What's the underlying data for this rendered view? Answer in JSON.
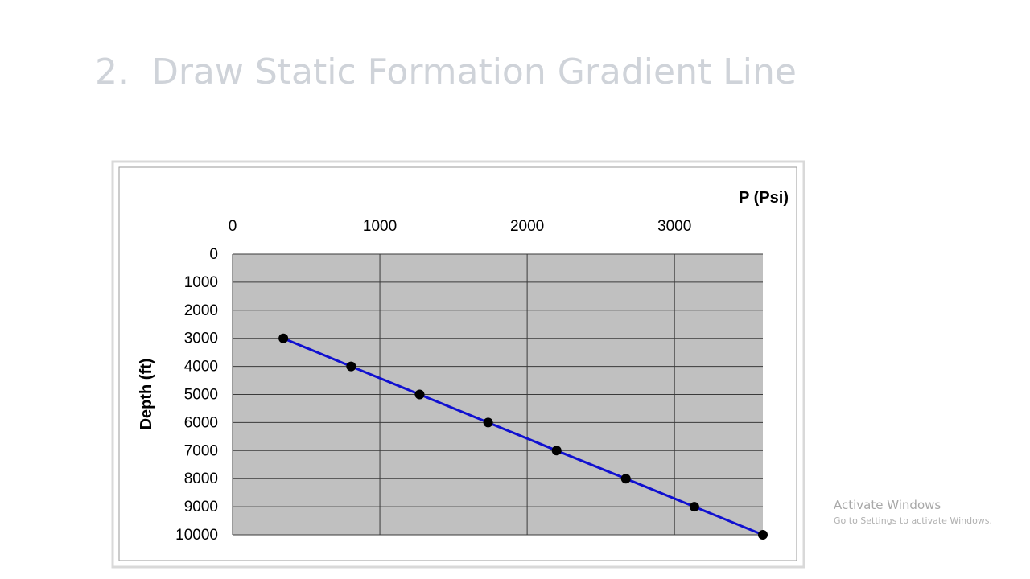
{
  "slide_title": "2.  Draw Static Formation Gradient Line",
  "watermark": {
    "title": "Activate Windows",
    "subtitle": "Go to Settings to activate Windows."
  },
  "chart_data": {
    "type": "scatter",
    "x_label": "P (Psi)",
    "y_label": "Depth (ft)",
    "xlim": [
      0,
      3600
    ],
    "xticks": [
      0,
      1000,
      2000,
      3000
    ],
    "ylim": [
      0,
      10000
    ],
    "yticks": [
      0,
      1000,
      2000,
      3000,
      4000,
      5000,
      6000,
      7000,
      8000,
      9000,
      10000
    ],
    "y_reversed": true,
    "x_axis_position": "top",
    "grid": true,
    "line": true,
    "plot_background": "#c0c0c0",
    "series": [
      {
        "color": "#1010d0",
        "marker_color": "#000000",
        "x": [
          345,
          805,
          1270,
          1735,
          2200,
          2670,
          3135,
          3600
        ],
        "values": [
          3000,
          4000,
          5000,
          6000,
          7000,
          8000,
          9000,
          10000
        ]
      }
    ]
  }
}
